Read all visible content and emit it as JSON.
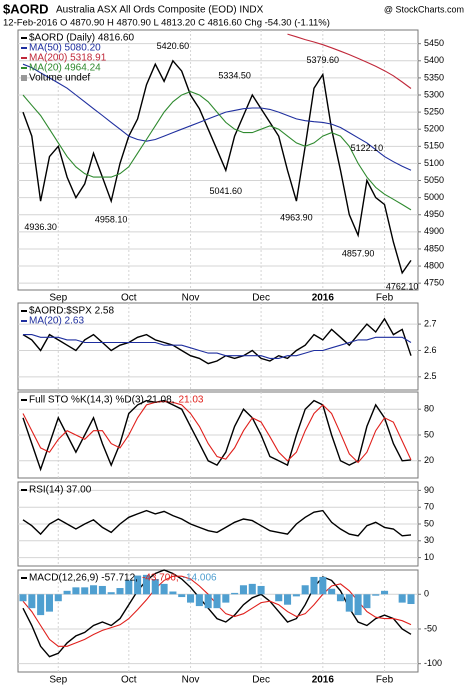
{
  "chart_data": [
    {
      "type": "line",
      "title": "$AORD",
      "subtitle": "Australia ASX All Ords Composite (EOD) INDX",
      "quote": "12-Feb-2016  O 4870.90  H 4870.90  L 4813.20  C 4816.60  Chg -54.30 (-1.11%)",
      "credit": "@ StockCharts.com",
      "note": "Volume undef",
      "categories": [
        null,
        null,
        null,
        null,
        "Sep",
        null,
        null,
        null,
        null,
        null,
        null,
        null,
        "Oct",
        null,
        null,
        null,
        null,
        null,
        null,
        "Nov",
        null,
        null,
        null,
        null,
        null,
        null,
        null,
        "Dec",
        null,
        null,
        null,
        null,
        null,
        null,
        "2016",
        null,
        null,
        null,
        null,
        null,
        null,
        "Feb",
        null,
        null,
        null
      ],
      "ylim": [
        4730,
        5490
      ],
      "yticks": [
        4750,
        4800,
        4850,
        4900,
        4950,
        5000,
        5050,
        5100,
        5150,
        5200,
        5250,
        5300,
        5350,
        5400,
        5450
      ],
      "grid": true,
      "series": [
        {
          "name": "$AORD (Daily) 4816.60",
          "color": "#000000",
          "values": [
            5250,
            5180,
            4990,
            5120,
            5150,
            5060,
            5000,
            5040,
            5130,
            5060,
            4990,
            5100,
            5180,
            5230,
            5330,
            5390,
            5340,
            5400,
            5370,
            5300,
            5260,
            5200,
            5140,
            5080,
            5180,
            5240,
            5300,
            5260,
            5220,
            5180,
            5080,
            4990,
            5150,
            5320,
            5360,
            5200,
            5080,
            4950,
            4890,
            5050,
            5000,
            4980,
            4870,
            4780,
            4816.6
          ]
        },
        {
          "name": "MA(50) 5080.20",
          "color": "#1f2f9f",
          "values": [
            5390,
            5380,
            5365,
            5350,
            5335,
            5320,
            5300,
            5280,
            5260,
            5240,
            5220,
            5200,
            5180,
            5170,
            5165,
            5170,
            5180,
            5190,
            5200,
            5210,
            5220,
            5230,
            5240,
            5250,
            5255,
            5260,
            5262,
            5262,
            5258,
            5250,
            5240,
            5230,
            5225,
            5222,
            5220,
            5215,
            5205,
            5190,
            5175,
            5160,
            5140,
            5120,
            5105,
            5092,
            5080.2
          ]
        },
        {
          "name": "MA(200) 5318.91",
          "color": "#c0283a",
          "values": [
            null,
            null,
            null,
            null,
            null,
            null,
            null,
            null,
            null,
            null,
            null,
            null,
            null,
            null,
            null,
            null,
            null,
            null,
            null,
            null,
            null,
            null,
            null,
            null,
            null,
            null,
            null,
            null,
            null,
            null,
            5478,
            5470,
            5462,
            5455,
            5447,
            5438,
            5428,
            5418,
            5407,
            5396,
            5384,
            5371,
            5356,
            5338,
            5318.91
          ]
        },
        {
          "name": "MA(20) 4964.24",
          "color": "#2f8a2f",
          "values": [
            5300,
            5270,
            5240,
            5200,
            5160,
            5120,
            5090,
            5070,
            5060,
            5060,
            5060,
            5070,
            5090,
            5130,
            5170,
            5210,
            5250,
            5280,
            5300,
            5310,
            5300,
            5280,
            5250,
            5220,
            5200,
            5190,
            5190,
            5200,
            5210,
            5200,
            5180,
            5160,
            5150,
            5160,
            5180,
            5190,
            5180,
            5150,
            5100,
            5060,
            5030,
            5010,
            4995,
            4980,
            4964.24
          ]
        }
      ],
      "annotations": [
        {
          "index": 2,
          "value": 4936.3,
          "label": "4936.30"
        },
        {
          "index": 10,
          "value": 4958.1,
          "label": "4958.10"
        },
        {
          "index": 17,
          "value": 5420.6,
          "label": "5420.60"
        },
        {
          "index": 23,
          "value": 5041.6,
          "label": "5041.60"
        },
        {
          "index": 24,
          "value": 5334.5,
          "label": "5334.50"
        },
        {
          "index": 31,
          "value": 4963.9,
          "label": "4963.90"
        },
        {
          "index": 34,
          "value": 5379.6,
          "label": "5379.60"
        },
        {
          "index": 38,
          "value": 4857.9,
          "label": "4857.90"
        },
        {
          "index": 39,
          "value": 5122.1,
          "label": "5122.10"
        },
        {
          "index": 43,
          "value": 4762.1,
          "label": "4762.10"
        }
      ]
    },
    {
      "type": "line",
      "ylim": [
        2.45,
        2.78
      ],
      "yticks": [
        2.5,
        2.6,
        2.7
      ],
      "grid": true,
      "series": [
        {
          "name": "$AORD:$SPX 2.58",
          "color": "#000000",
          "values": [
            2.66,
            2.64,
            2.6,
            2.66,
            2.64,
            2.62,
            2.6,
            2.64,
            2.66,
            2.63,
            2.6,
            2.62,
            2.63,
            2.65,
            2.66,
            2.64,
            2.63,
            2.62,
            2.6,
            2.58,
            2.57,
            2.55,
            2.56,
            2.58,
            2.57,
            2.58,
            2.6,
            2.57,
            2.56,
            2.58,
            2.57,
            2.6,
            2.62,
            2.66,
            2.64,
            2.68,
            2.65,
            2.62,
            2.66,
            2.7,
            2.67,
            2.72,
            2.66,
            2.68,
            2.58
          ]
        },
        {
          "name": "MA(20) 2.63",
          "color": "#1f2f9f",
          "values": [
            2.66,
            2.66,
            2.65,
            2.65,
            2.65,
            2.64,
            2.64,
            2.63,
            2.63,
            2.63,
            2.63,
            2.63,
            2.63,
            2.63,
            2.63,
            2.63,
            2.62,
            2.62,
            2.62,
            2.61,
            2.6,
            2.59,
            2.59,
            2.58,
            2.58,
            2.58,
            2.58,
            2.58,
            2.57,
            2.57,
            2.58,
            2.58,
            2.59,
            2.6,
            2.6,
            2.61,
            2.62,
            2.63,
            2.64,
            2.64,
            2.65,
            2.65,
            2.65,
            2.65,
            2.63
          ]
        }
      ]
    },
    {
      "type": "line",
      "ylim": [
        0,
        100
      ],
      "yticks": [
        20,
        50,
        80
      ],
      "grid": true,
      "series": [
        {
          "name": "Full STO %K(14,3) %D(3) 21.08,",
          "color": "#000000",
          "values": [
            70,
            40,
            10,
            40,
            70,
            50,
            30,
            50,
            70,
            40,
            15,
            40,
            75,
            85,
            90,
            88,
            90,
            85,
            80,
            60,
            40,
            20,
            15,
            30,
            60,
            80,
            70,
            50,
            25,
            20,
            15,
            50,
            80,
            90,
            85,
            50,
            20,
            15,
            20,
            60,
            85,
            70,
            40,
            20,
            21.08
          ]
        },
        {
          "name": "21.03",
          "color": "#e0201c",
          "values": [
            75,
            55,
            35,
            30,
            45,
            55,
            50,
            45,
            55,
            55,
            40,
            35,
            50,
            70,
            85,
            88,
            89,
            88,
            85,
            75,
            60,
            40,
            25,
            22,
            35,
            55,
            70,
            65,
            48,
            30,
            20,
            30,
            55,
            75,
            85,
            75,
            52,
            28,
            18,
            30,
            55,
            70,
            65,
            43,
            21.03
          ]
        }
      ]
    },
    {
      "type": "line",
      "ylim": [
        0,
        100
      ],
      "yticks": [
        10,
        30,
        50,
        70,
        90
      ],
      "grid": true,
      "series": [
        {
          "name": "RSI(14) 37.00",
          "color": "#000000",
          "values": [
            55,
            48,
            38,
            50,
            56,
            50,
            44,
            50,
            55,
            46,
            40,
            50,
            58,
            62,
            66,
            62,
            65,
            60,
            56,
            50,
            46,
            42,
            40,
            46,
            52,
            56,
            54,
            48,
            42,
            40,
            38,
            50,
            58,
            64,
            66,
            52,
            44,
            38,
            36,
            48,
            52,
            46,
            44,
            36,
            37
          ]
        }
      ]
    },
    {
      "type": "line",
      "ylim": [
        -112,
        35
      ],
      "yticks": [
        0,
        -50,
        -100
      ],
      "grid": true,
      "categories": [
        null,
        null,
        null,
        null,
        "Sep",
        null,
        null,
        null,
        null,
        null,
        null,
        null,
        "Oct",
        null,
        null,
        null,
        null,
        null,
        null,
        "Nov",
        null,
        null,
        null,
        null,
        null,
        null,
        null,
        "Dec",
        null,
        null,
        null,
        null,
        null,
        null,
        "2016",
        null,
        null,
        null,
        null,
        null,
        null,
        "Feb",
        null,
        null,
        null
      ],
      "series": [
        {
          "name": "MACD(12,26,9) -57.712,",
          "color": "#000000",
          "values": [
            -20,
            -45,
            -75,
            -90,
            -85,
            -70,
            -60,
            -55,
            -45,
            -40,
            -45,
            -35,
            -15,
            5,
            20,
            30,
            35,
            30,
            22,
            10,
            -5,
            -20,
            -35,
            -40,
            -30,
            -15,
            -5,
            0,
            -10,
            -25,
            -40,
            -35,
            -15,
            10,
            25,
            20,
            5,
            -20,
            -40,
            -45,
            -35,
            -30,
            -35,
            -50,
            -57.712
          ]
        },
        {
          "name": "-43.706,",
          "color": "#e0201c",
          "values": [
            -10,
            -25,
            -45,
            -65,
            -75,
            -75,
            -70,
            -65,
            -58,
            -52,
            -48,
            -44,
            -35,
            -22,
            -8,
            8,
            20,
            26,
            26,
            22,
            12,
            0,
            -15,
            -28,
            -32,
            -28,
            -20,
            -12,
            -10,
            -15,
            -25,
            -32,
            -28,
            -15,
            0,
            12,
            15,
            5,
            -10,
            -25,
            -33,
            -35,
            -35,
            -38,
            -43.706
          ]
        },
        {
          "name": "-14.006",
          "color": "#4f9fd0",
          "type": "bar",
          "values": [
            -10,
            -20,
            -30,
            -25,
            -10,
            5,
            10,
            10,
            13,
            12,
            3,
            9,
            20,
            27,
            28,
            22,
            15,
            4,
            -4,
            -12,
            -17,
            -20,
            -20,
            -12,
            2,
            13,
            15,
            12,
            0,
            -10,
            -15,
            -3,
            13,
            25,
            25,
            8,
            -10,
            -25,
            -30,
            -20,
            -2,
            5,
            0,
            -12,
            -14.006
          ]
        }
      ]
    }
  ]
}
